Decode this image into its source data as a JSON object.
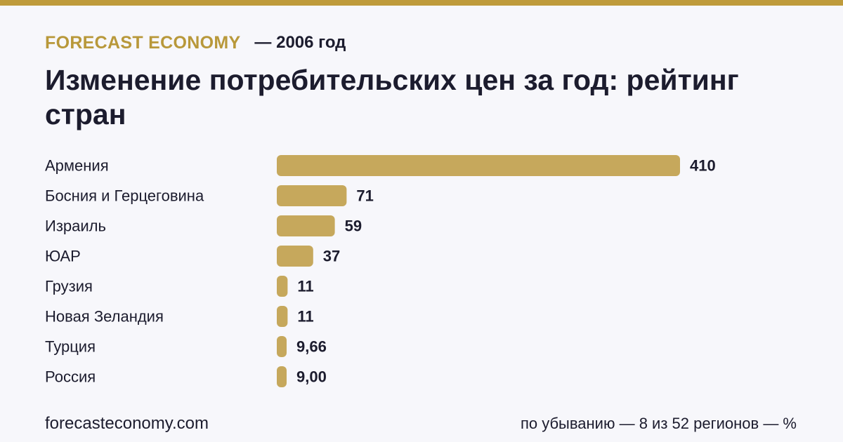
{
  "header": {
    "brand": "FORECAST ECONOMY",
    "year_label": "— 2006 год"
  },
  "chart_data": {
    "type": "bar",
    "orientation": "horizontal",
    "title": "Изменение потребительских цен за год: рейтинг стран",
    "categories": [
      "Армения",
      "Босния и Герцеговина",
      "Израиль",
      "ЮАР",
      "Грузия",
      "Новая Зеландия",
      "Турция",
      "Россия"
    ],
    "values": [
      410,
      71,
      59,
      37,
      11,
      11,
      9.66,
      9.0
    ],
    "value_labels": [
      "410",
      "71",
      "59",
      "37",
      "11",
      "11",
      "9,66",
      "9,00"
    ],
    "xlim": [
      0,
      410
    ],
    "grid": false,
    "legend": "none",
    "bar_color": "#c6a85c"
  },
  "footer": {
    "site": "forecasteconomy.com",
    "note": "по убыванию — 8 из 52 регионов — %"
  },
  "colors": {
    "accent": "#bf9b3b",
    "brand_text": "#b8983a",
    "background": "#f7f7fb",
    "text": "#1c1c2e"
  }
}
